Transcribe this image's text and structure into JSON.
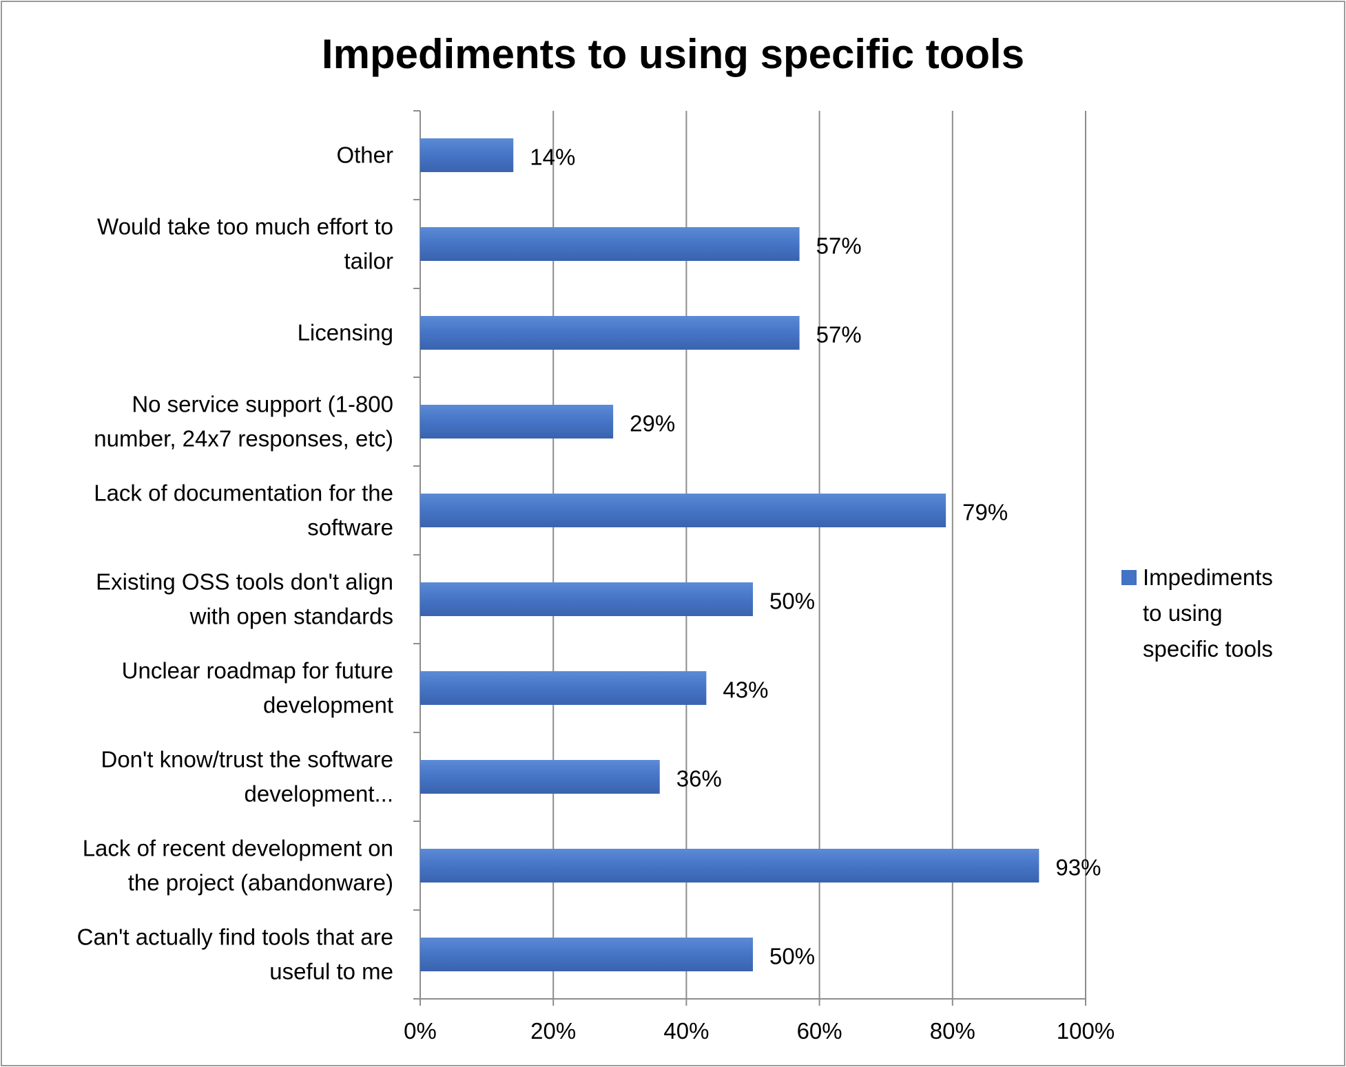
{
  "chart_data": {
    "type": "bar",
    "orientation": "horizontal",
    "title": "Impediments to using specific tools",
    "categories": [
      [
        "Other"
      ],
      [
        "Would take too much effort to",
        "tailor"
      ],
      [
        "Licensing"
      ],
      [
        "No service support (1-800",
        "number, 24x7 responses, etc)"
      ],
      [
        "Lack of documentation for the",
        "software"
      ],
      [
        "Existing OSS tools don't align",
        "with open standards"
      ],
      [
        "Unclear roadmap for future",
        "development"
      ],
      [
        "Don't know/trust the software",
        "development..."
      ],
      [
        "Lack of recent development on",
        "the project (abandonware)"
      ],
      [
        "Can't actually find tools that are",
        "useful to me"
      ]
    ],
    "series": [
      {
        "name": "Impediments to using specific tools",
        "legend_lines": [
          "Impediments",
          "to using",
          "specific tools"
        ],
        "values": [
          14,
          57,
          57,
          29,
          79,
          50,
          43,
          36,
          93,
          50
        ],
        "data_labels": [
          "14%",
          "57%",
          "57%",
          "29%",
          "79%",
          "50%",
          "43%",
          "36%",
          "93%",
          "50%"
        ],
        "color": "#4472C4"
      }
    ],
    "xlim": [
      0,
      100
    ],
    "xticks": [
      0,
      20,
      40,
      60,
      80,
      100
    ],
    "xtick_labels": [
      "0%",
      "20%",
      "40%",
      "60%",
      "80%",
      "100%"
    ],
    "grid": "vertical major gridlines",
    "legend_position": "right"
  }
}
